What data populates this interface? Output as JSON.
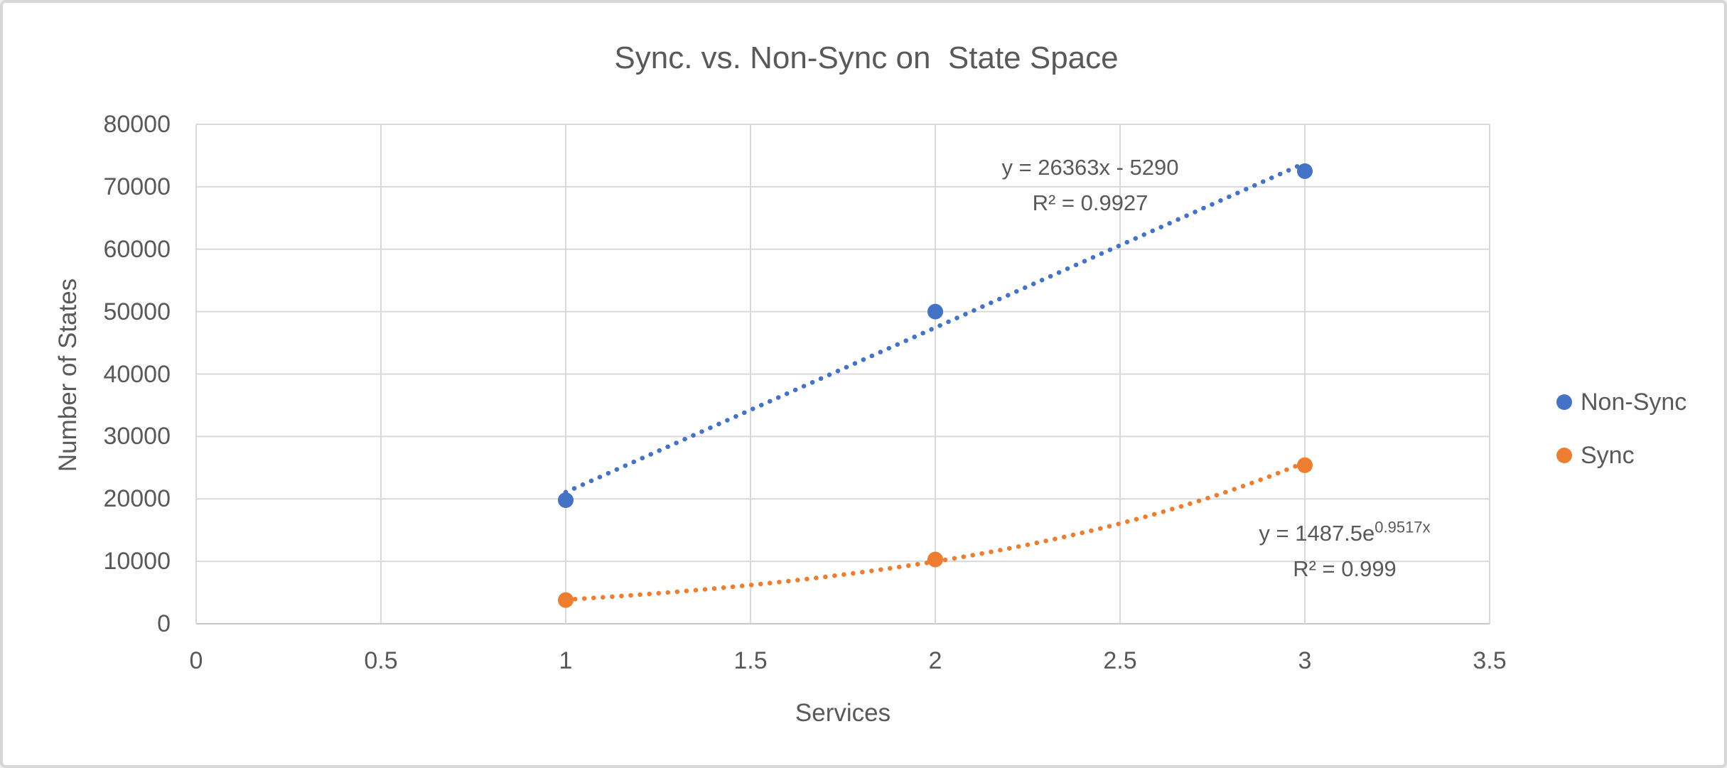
{
  "page": {
    "background": "#FFFFFF",
    "border_color": "#D7D7D7",
    "text_color": "#595959"
  },
  "chart_data": {
    "type": "scatter",
    "title": "Sync. vs. Non-Sync on  State Space",
    "xlabel": "Services",
    "ylabel": "Number of States",
    "xlim": [
      0,
      3.5
    ],
    "ylim": [
      0,
      80000
    ],
    "x_ticks": [
      0,
      0.5,
      1,
      1.5,
      2,
      2.5,
      3,
      3.5
    ],
    "y_ticks": [
      0,
      10000,
      20000,
      30000,
      40000,
      50000,
      60000,
      70000,
      80000
    ],
    "grid": true,
    "gridline_color": "#D9D9D9",
    "axis_line_color": "#C6C6C6",
    "legend_position": "right",
    "series": [
      {
        "name": "Non-Sync",
        "color": "#4472C4",
        "marker": "circle",
        "x": [
          1,
          2,
          3
        ],
        "y": [
          19800,
          50000,
          72500
        ],
        "trendline": {
          "kind": "linear",
          "style": "dotted",
          "slope": 26363,
          "intercept": -5290,
          "equation": "y = 26363x - 5290",
          "r2_label": "R² = 0.9927"
        }
      },
      {
        "name": "Sync",
        "color": "#ED7D31",
        "marker": "circle",
        "x": [
          1,
          2,
          3
        ],
        "y": [
          3800,
          10300,
          25400
        ],
        "trendline": {
          "kind": "exponential",
          "style": "dotted",
          "coefficient": 1487.5,
          "exponent": 0.9517,
          "equation_base": "y = 1487.5e",
          "equation_exponent": "0.9517x",
          "r2_label": "R² = 0.999"
        }
      }
    ]
  }
}
